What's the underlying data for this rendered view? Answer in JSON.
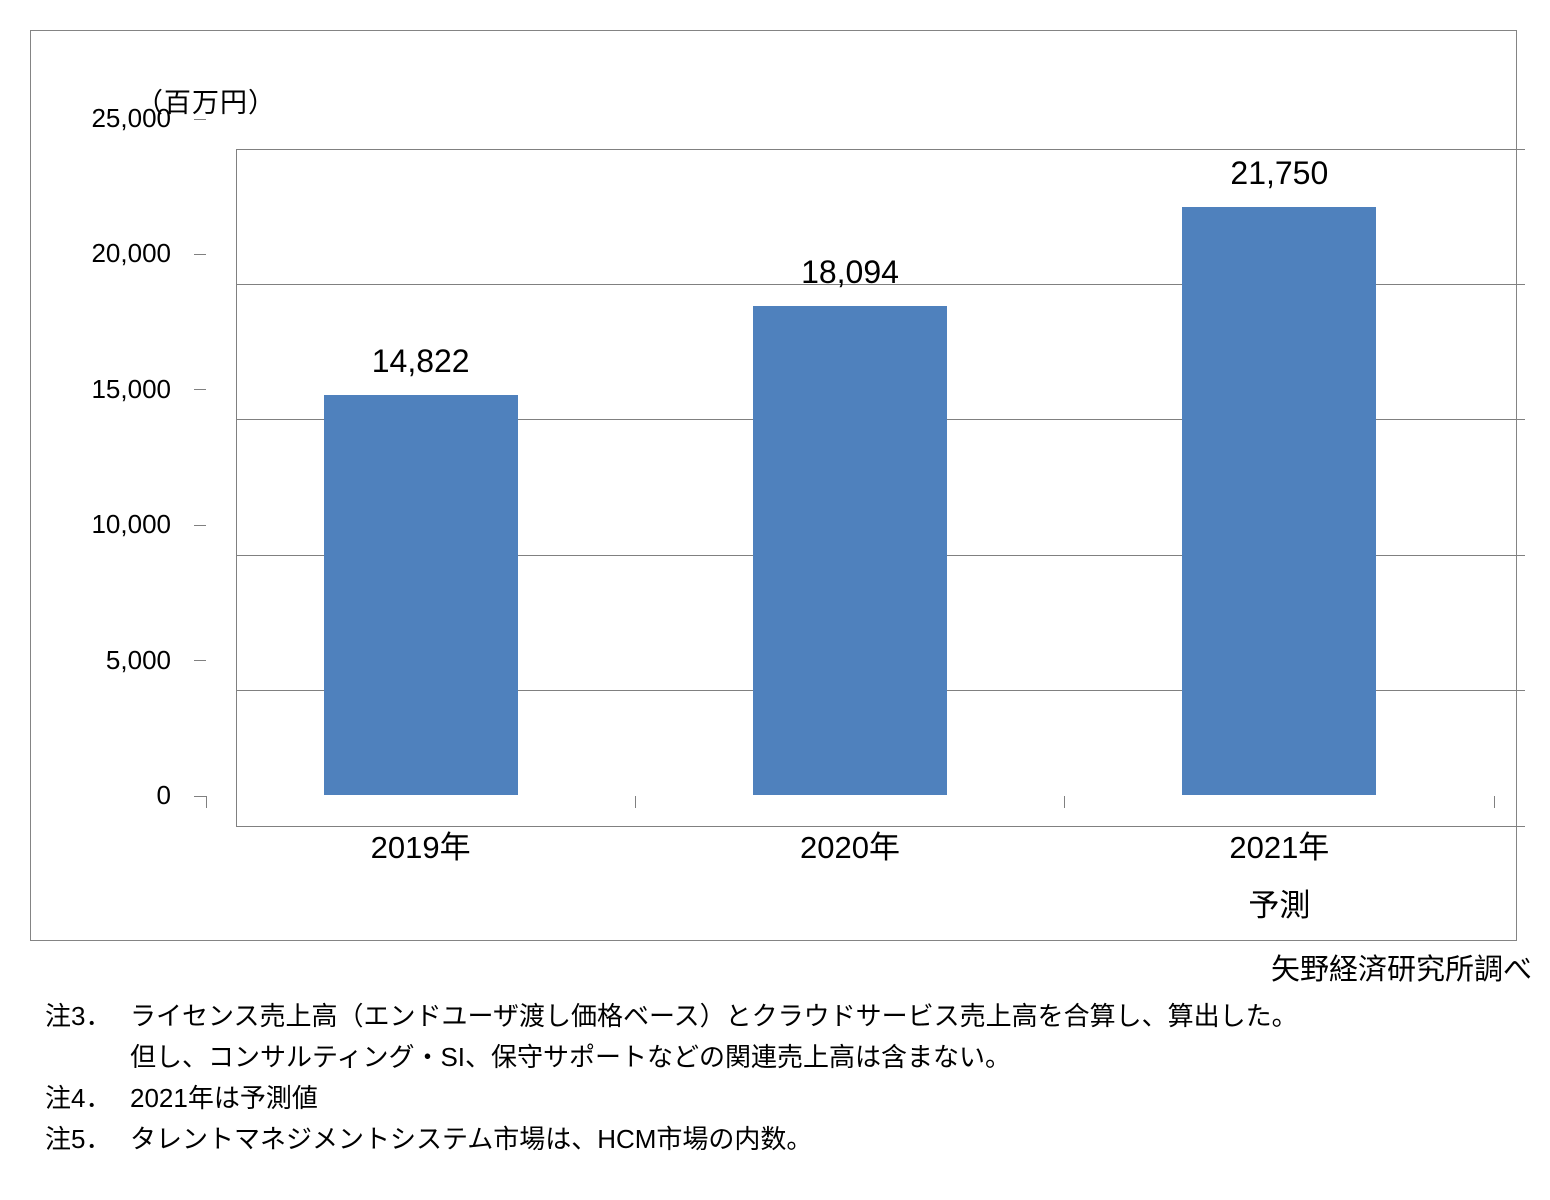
{
  "chart_data": {
    "type": "bar",
    "title": "",
    "unit_label": "（百万円）",
    "categories": [
      "2019年",
      "2020年",
      "2021年"
    ],
    "category_sublabels": [
      "",
      "",
      "予測"
    ],
    "values": [
      14822,
      18094,
      21750
    ],
    "value_labels": [
      "14,822",
      "18,094",
      "21,750"
    ],
    "xlabel": "",
    "ylabel": "（百万円）",
    "ylim": [
      0,
      25000
    ],
    "ytick_step": 5000,
    "ytick_labels": [
      "0",
      "5,000",
      "10,000",
      "15,000",
      "20,000",
      "25,000"
    ],
    "grid": true,
    "legend": "none",
    "bar_color": "#4F81BD",
    "axis_color": "#808080"
  },
  "source": "矢野経済研究所調べ",
  "notes": [
    {
      "label": "注3．",
      "lines": [
        "ライセンス売上高（エンドユーザ渡し価格ベース）とクラウドサービス売上高を合算し、算出した。",
        "但し、コンサルティング・SI、保守サポートなどの関連売上高は含まない。"
      ]
    },
    {
      "label": "注4．",
      "lines": [
        "2021年は予測値"
      ]
    },
    {
      "label": "注5．",
      "lines": [
        "タレントマネジメントシステム市場は、HCM市場の内数。"
      ]
    }
  ]
}
